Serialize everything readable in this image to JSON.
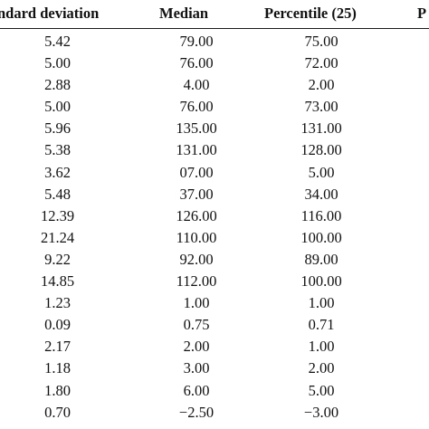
{
  "table": {
    "headers": {
      "std_dev": "ndard deviation",
      "median": "Median",
      "percentile25": "Percentile (25)",
      "cut": "P"
    },
    "rows": [
      {
        "sd": "5.42",
        "median": "79.00",
        "p25": "75.00"
      },
      {
        "sd": "5.00",
        "median": "76.00",
        "p25": "72.00"
      },
      {
        "sd": "2.88",
        "median": "4.00",
        "p25": "2.00"
      },
      {
        "sd": "5.00",
        "median": "76.00",
        "p25": "73.00"
      },
      {
        "sd": "5.96",
        "median": "135.00",
        "p25": "131.00"
      },
      {
        "sd": "5.38",
        "median": "131.00",
        "p25": "128.00"
      },
      {
        "sd": "3.62",
        "median": "07.00",
        "p25": "5.00"
      },
      {
        "sd": "5.48",
        "median": "37.00",
        "p25": "34.00"
      },
      {
        "sd": "12.39",
        "median": "126.00",
        "p25": "116.00"
      },
      {
        "sd": "21.24",
        "median": "110.00",
        "p25": "100.00"
      },
      {
        "sd": "9.22",
        "median": "92.00",
        "p25": "89.00"
      },
      {
        "sd": "14.85",
        "median": "112.00",
        "p25": "100.00"
      },
      {
        "sd": "1.23",
        "median": "1.00",
        "p25": "1.00"
      },
      {
        "sd": "0.09",
        "median": "0.75",
        "p25": "0.71"
      },
      {
        "sd": "2.17",
        "median": "2.00",
        "p25": "1.00"
      },
      {
        "sd": "1.18",
        "median": "3.00",
        "p25": "2.00"
      },
      {
        "sd": "1.80",
        "median": "6.00",
        "p25": "5.00"
      },
      {
        "sd": "0.70",
        "median": "−2.50",
        "p25": "−3.00"
      }
    ]
  }
}
